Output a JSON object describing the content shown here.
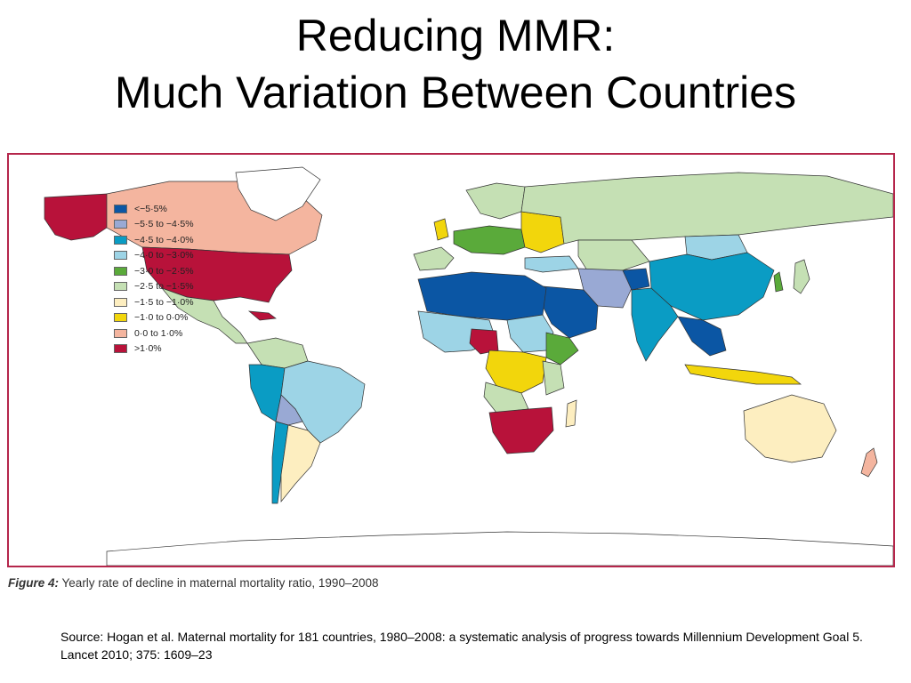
{
  "title": {
    "line1": "Reducing MMR:",
    "line2": "Much Variation Between Countries"
  },
  "map": {
    "legend": [
      {
        "label": "<−5·5%",
        "color": "#0b56a4"
      },
      {
        "label": "−5·5 to −4·5%",
        "color": "#99a9d4"
      },
      {
        "label": "−4·5 to −4·0%",
        "color": "#0a9cc4"
      },
      {
        "label": "−4·0 to −3·0%",
        "color": "#9dd4e6"
      },
      {
        "label": "−3·0 to −2·5%",
        "color": "#5aaa3a"
      },
      {
        "label": "−2·5 to −1·5%",
        "color": "#c5e0b4"
      },
      {
        "label": "−1·5 to −1·0%",
        "color": "#fdeec0"
      },
      {
        "label": "−1·0 to 0·0%",
        "color": "#f2d60c"
      },
      {
        "label": "0·0 to 1·0%",
        "color": "#f4b59f"
      },
      {
        "label": ">1·0%",
        "color": "#b8123a"
      }
    ],
    "caption_fig": "Figure 4:",
    "caption_text": "Yearly rate of decline in maternal mortality ratio, 1990–2008"
  },
  "source": "Source: Hogan et al. Maternal mortality for 181 countries, 1980–2008: a systematic analysis of progress towards Millennium Development Goal 5. Lancet 2010; 375: 1609–23"
}
